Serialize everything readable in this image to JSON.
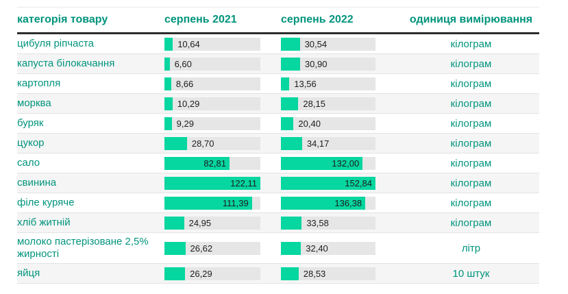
{
  "colors": {
    "accent": "#00947c",
    "bar": "#06d6a0",
    "track": "#e6e6e6",
    "alt_row": "#f5f5f5",
    "value_text": "#1c1c1c",
    "header_rule": "#2d2d2d"
  },
  "table": {
    "headers": {
      "category": "категорія товару",
      "col2021": "серпень 2021",
      "col2022": "серпень 2022",
      "unit": "одиниця вимірювання"
    }
  },
  "chart_data": {
    "type": "bar",
    "layout": "table-with-inline-bars",
    "bar_scale": "per-column-max",
    "decimal_separator": ",",
    "categories": [
      "цибуля ріпчаста",
      "капуста білокачання",
      "картопля",
      "морква",
      "буряк",
      "цукор",
      "сало",
      "свинина",
      "філе куряче",
      "хліб житній",
      "молоко пастерізоване 2,5% жирності",
      "яйця"
    ],
    "series": [
      {
        "name": "серпень 2021",
        "values": [
          10.64,
          6.6,
          8.66,
          10.29,
          9.29,
          28.7,
          82.81,
          122.11,
          111.39,
          24.95,
          26.62,
          26.29
        ]
      },
      {
        "name": "серпень 2022",
        "values": [
          30.54,
          30.9,
          13.56,
          28.15,
          20.4,
          34.17,
          132.0,
          152.84,
          136.38,
          33.58,
          32.4,
          28.53
        ]
      }
    ],
    "units": [
      "кілограм",
      "кілограм",
      "кілограм",
      "кілограм",
      "кілограм",
      "кілограм",
      "кілограм",
      "кілограм",
      "кілограм",
      "кілограм",
      "літр",
      "10 штук"
    ]
  }
}
